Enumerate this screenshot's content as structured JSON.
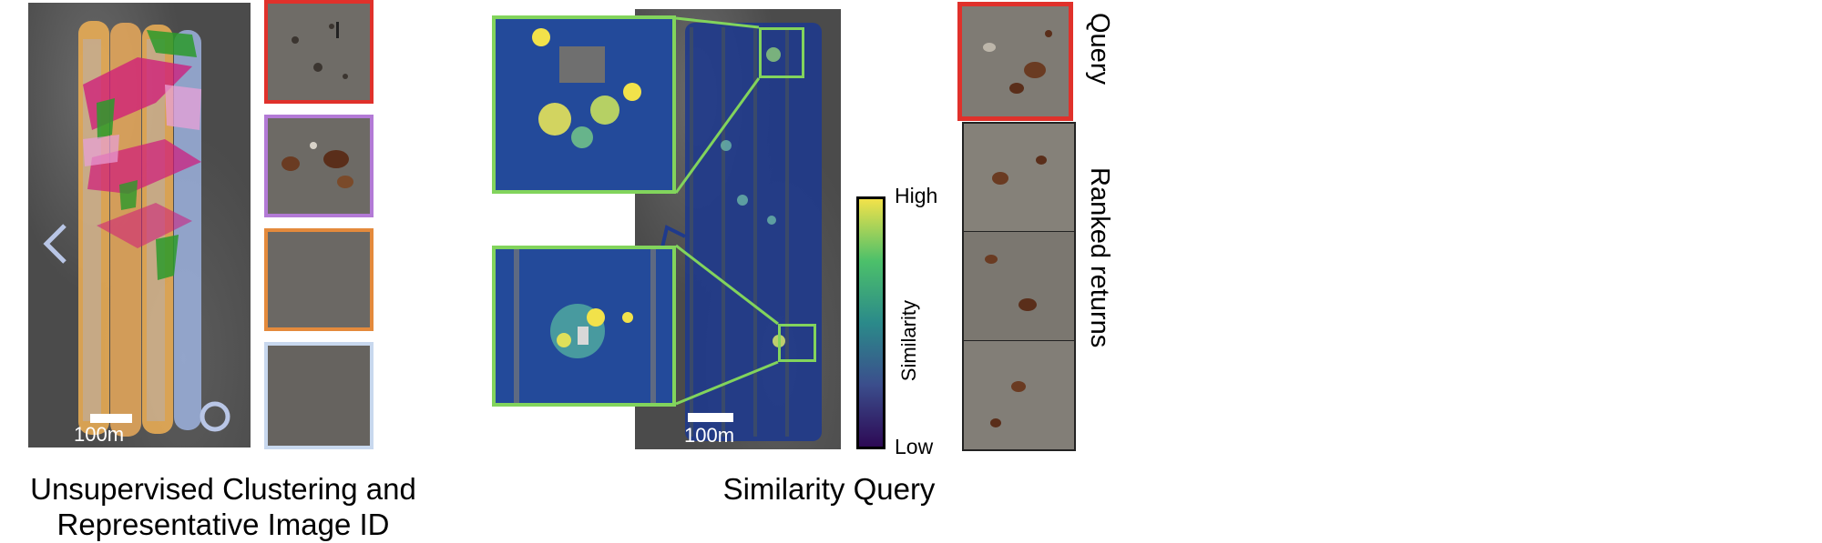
{
  "left_panel": {
    "scale_label": "100m",
    "caption_line1": "Unsupervised Clustering and",
    "caption_line2": "Representative Image ID",
    "cluster_colors": [
      "#e0312b",
      "#b37ad6",
      "#e48a3c",
      "#c8d8ee"
    ]
  },
  "middle_panel": {
    "scale_label": "100m",
    "caption": "Similarity Query",
    "inset_border_color": "#82d45c"
  },
  "colorbar": {
    "high_label": "High",
    "low_label": "Low",
    "title": "Similarity",
    "colors": [
      "#2d0a55",
      "#3b4e8c",
      "#2b8a8a",
      "#4cc06a",
      "#f2e24a"
    ]
  },
  "right_panel": {
    "query_label": "Query",
    "returns_label": "Ranked returns",
    "query_border_color": "#e0312b"
  }
}
